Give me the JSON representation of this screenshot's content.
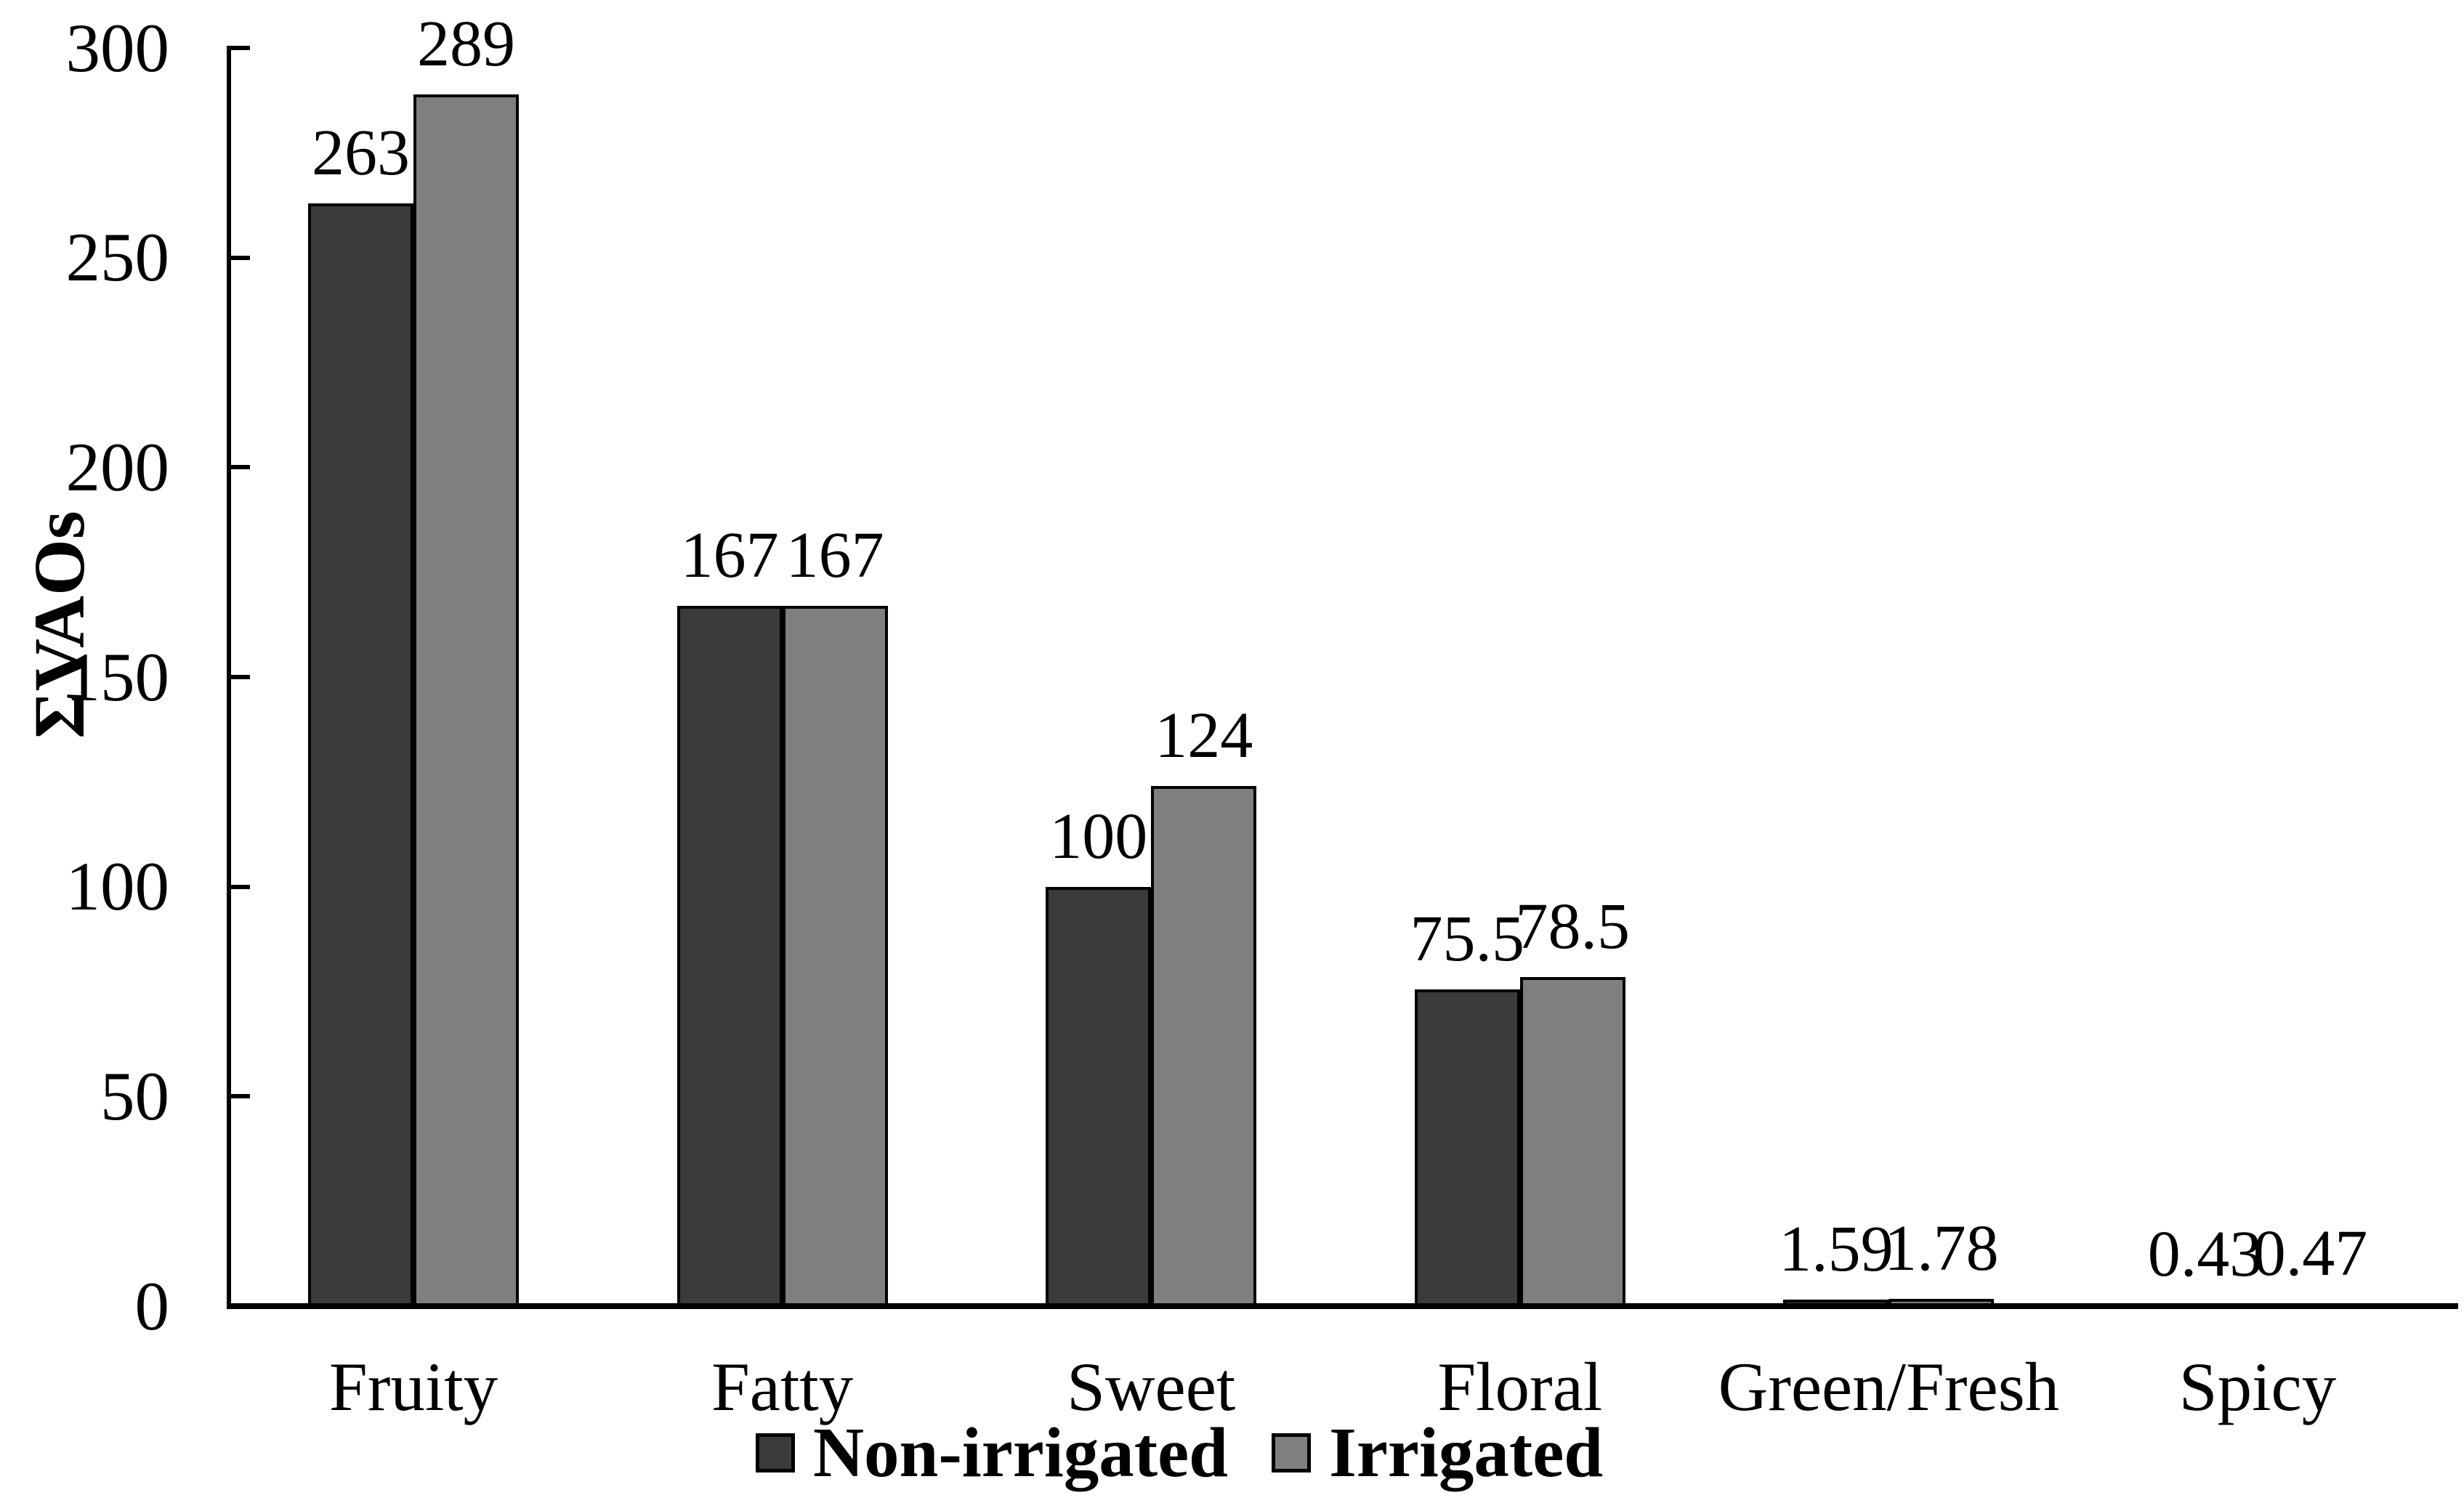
{
  "chart_data": {
    "type": "bar",
    "title": "",
    "xlabel": "",
    "ylabel": "ΣVAOs",
    "ylim": [
      0,
      300
    ],
    "yticks": [
      0,
      50,
      100,
      150,
      200,
      250,
      300
    ],
    "ytick_labels": [
      "0",
      "50",
      "100",
      "150",
      "200",
      "250",
      "300"
    ],
    "grid": false,
    "legend_position": "bottom",
    "background_color": "#ffffff",
    "axis_color": "#000000",
    "bar_edge_color": "#000000",
    "categories": [
      "Fruity",
      "Fatty",
      "Sweet",
      "Floral",
      "Green/Fresh",
      "Spicy"
    ],
    "series": [
      {
        "name": "Non-irrigated",
        "color": "#3b3b3b",
        "values": [
          263,
          167,
          100,
          75.5,
          1.59,
          0.43
        ],
        "labels": [
          "263",
          "167",
          "100",
          "75.5",
          "1.59",
          "0.43"
        ]
      },
      {
        "name": "Irrigated",
        "color": "#7f7f7f",
        "values": [
          289,
          167,
          124,
          78.5,
          1.78,
          0.47
        ],
        "labels": [
          "289",
          "167",
          "124",
          "78.5",
          "1.78",
          "0.47"
        ]
      }
    ]
  }
}
